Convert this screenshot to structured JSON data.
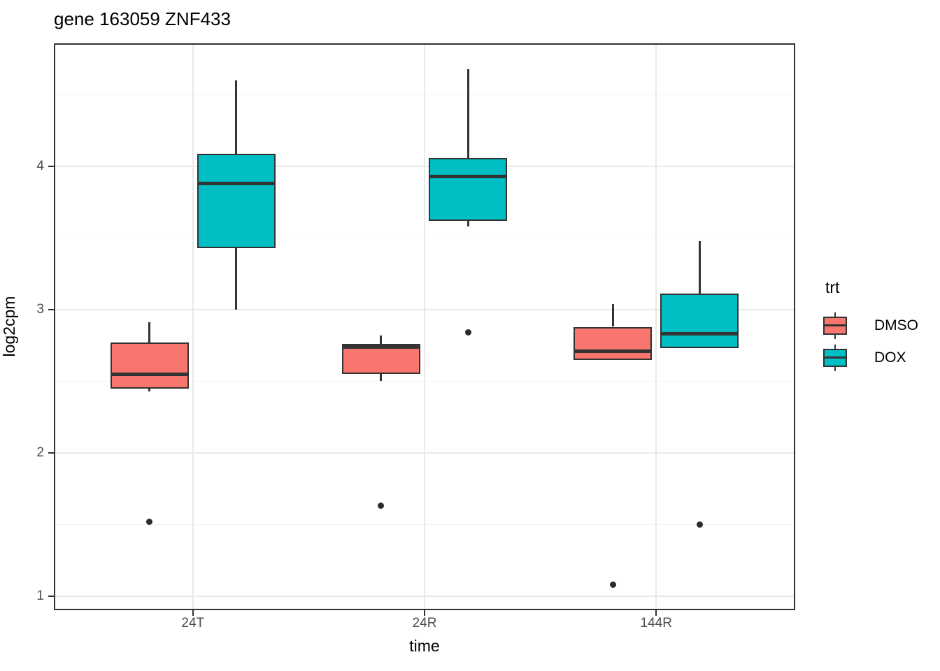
{
  "title": "gene 163059 ZNF433",
  "chart_data": {
    "type": "boxplot",
    "title": "gene 163059 ZNF433",
    "xlabel": "time",
    "ylabel": "log2cpm",
    "categories": [
      "24T",
      "24R",
      "144R"
    ],
    "y_ticks": [
      1,
      2,
      3,
      4
    ],
    "y_minor_ticks": [
      1.5,
      2.5,
      3.5,
      4.5
    ],
    "ylim": [
      0.9,
      4.86
    ],
    "grid": true,
    "legend": {
      "title": "trt",
      "position": "right",
      "entries": [
        {
          "label": "DMSO",
          "color": "#F8766D"
        },
        {
          "label": "DOX",
          "color": "#00BFC4"
        }
      ]
    },
    "series": [
      {
        "name": "DMSO",
        "color": "#F8766D",
        "boxes": [
          {
            "category": "24T",
            "whisker_low": 2.43,
            "q1": 2.45,
            "median": 2.55,
            "q3": 2.77,
            "whisker_high": 2.91,
            "outliers": [
              1.52
            ]
          },
          {
            "category": "24R",
            "whisker_low": 2.5,
            "q1": 2.55,
            "median": 2.74,
            "q3": 2.76,
            "whisker_high": 2.82,
            "outliers": [
              1.63
            ]
          },
          {
            "category": "144R",
            "whisker_low": 2.65,
            "q1": 2.65,
            "median": 2.71,
            "q3": 2.88,
            "whisker_high": 3.04,
            "outliers": [
              1.08
            ]
          }
        ]
      },
      {
        "name": "DOX",
        "color": "#00BFC4",
        "boxes": [
          {
            "category": "24T",
            "whisker_low": 3.0,
            "q1": 3.43,
            "median": 3.88,
            "q3": 4.09,
            "whisker_high": 4.6,
            "outliers": []
          },
          {
            "category": "24R",
            "whisker_low": 3.58,
            "q1": 3.62,
            "median": 3.93,
            "q3": 4.06,
            "whisker_high": 4.68,
            "outliers": [
              2.84
            ]
          },
          {
            "category": "144R",
            "whisker_low": 2.73,
            "q1": 2.73,
            "median": 2.83,
            "q3": 3.11,
            "whisker_high": 3.48,
            "outliers": [
              1.5
            ]
          }
        ]
      }
    ],
    "style": {
      "box_border": "#333333",
      "median_color": "#333333",
      "outlier_color": "#2b2b2b",
      "grid_major": "#e9e9e9",
      "grid_minor": "#f3f3f3",
      "tick_label_color": "#4d4d4d",
      "panel_border": "#333333"
    }
  }
}
